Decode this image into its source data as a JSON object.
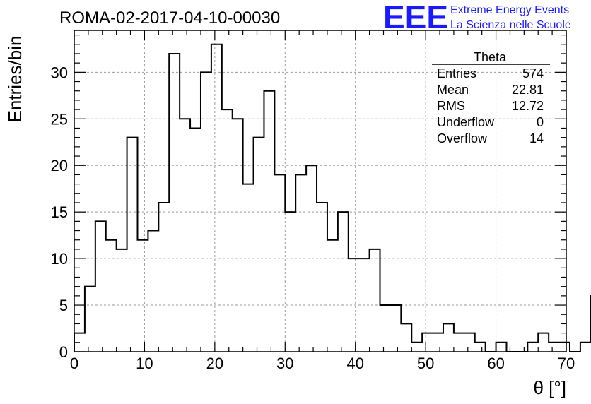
{
  "chart_data": {
    "type": "bar",
    "title": "ROMA-02-2017-04-10-00030",
    "xlabel": "θ [°]",
    "ylabel": "Entries/bin",
    "xlim": [
      0,
      70
    ],
    "ylim": [
      0,
      34.5
    ],
    "x_ticks": [
      0,
      10,
      20,
      30,
      40,
      50,
      60,
      70
    ],
    "y_ticks": [
      0,
      5,
      10,
      15,
      20,
      25,
      30
    ],
    "grid": true,
    "bin_width": 1.5,
    "bin_start": 0,
    "values": [
      2,
      7,
      14,
      12,
      11,
      23,
      12,
      13,
      16,
      32,
      25,
      24,
      30,
      33,
      26,
      25,
      18,
      23,
      28,
      19,
      15,
      19,
      20,
      16,
      12,
      15,
      10,
      10,
      11,
      5,
      5,
      3,
      1,
      2,
      2,
      3,
      2,
      2,
      1,
      0,
      1,
      0,
      0,
      1,
      2,
      1,
      1,
      0,
      1,
      6
    ],
    "stats_box": {
      "name": "Theta",
      "rows": [
        {
          "label": "Entries",
          "value": "574"
        },
        {
          "label": "Mean",
          "value": "22.81"
        },
        {
          "label": "RMS",
          "value": "12.72"
        },
        {
          "label": "Underflow",
          "value": "0"
        },
        {
          "label": "Overflow",
          "value": "14"
        }
      ]
    }
  },
  "logo": {
    "mark": "EEE",
    "line1": "Extreme Energy Events",
    "line2": "La Scienza nelle Scuole",
    "color": "#1a1aff"
  }
}
